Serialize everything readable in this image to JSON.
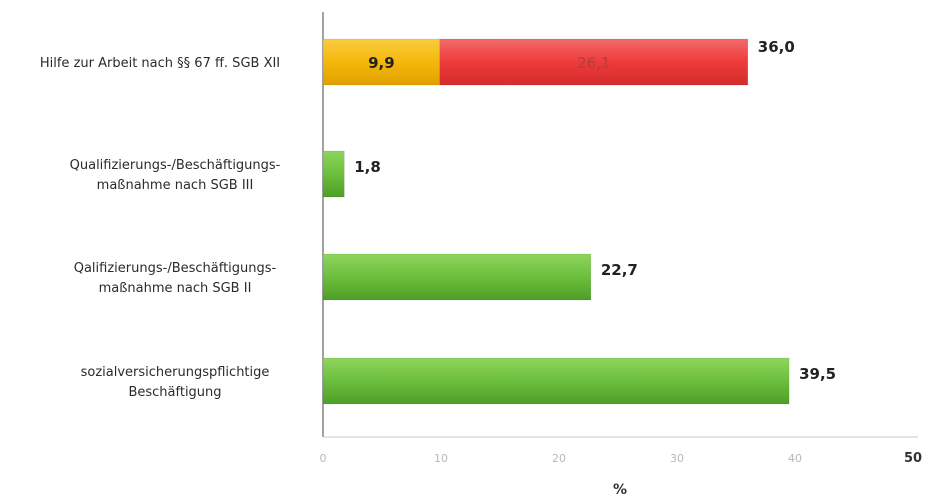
{
  "chart_data": {
    "type": "bar",
    "orientation": "horizontal",
    "stacked": true,
    "title": "",
    "xlabel": "%",
    "ylabel": "",
    "xlim": [
      0,
      50
    ],
    "x_ticks": [
      "0",
      "10",
      "20",
      "30",
      "40",
      "50"
    ],
    "grid": false,
    "categories": [
      [
        "Hilfe zur Arbeit nach §§ 67 ff. SGB XII"
      ],
      [
        "Qualifizierungs-/Beschäftigungs-",
        "maßnahme nach SGB III"
      ],
      [
        "Qalifizierungs-/Beschäftigungs-",
        "maßnahme nach SGB II"
      ],
      [
        "sozialversicherungspflichtige",
        "Beschäftigung"
      ]
    ],
    "bars": [
      {
        "segments": [
          {
            "value": 9.9,
            "label": "9,9",
            "color": "#f5b80c"
          },
          {
            "value": 26.1,
            "label": "26,1",
            "color": "#ee3b3b"
          }
        ],
        "total_label": "36,0"
      },
      {
        "segments": [
          {
            "value": 1.8,
            "label": "",
            "color": "#6cbf3c"
          }
        ],
        "total_label": "1,8"
      },
      {
        "segments": [
          {
            "value": 22.7,
            "label": "",
            "color": "#6cbf3c"
          }
        ],
        "total_label": "22,7"
      },
      {
        "segments": [
          {
            "value": 39.5,
            "label": "",
            "color": "#6cbf3c"
          }
        ],
        "total_label": "39,5"
      }
    ]
  }
}
